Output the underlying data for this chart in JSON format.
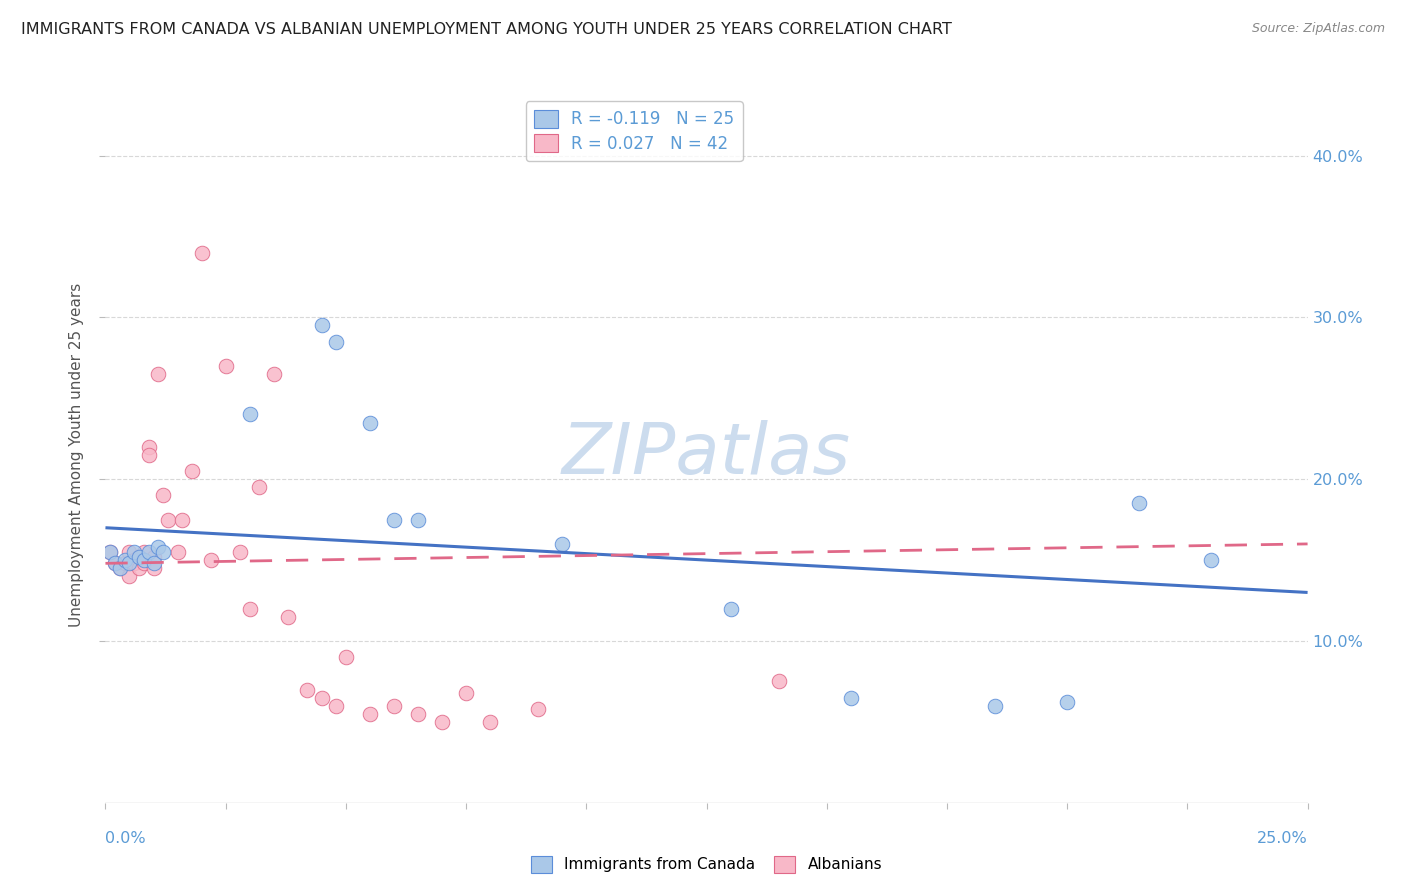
{
  "title": "IMMIGRANTS FROM CANADA VS ALBANIAN UNEMPLOYMENT AMONG YOUTH UNDER 25 YEARS CORRELATION CHART",
  "source": "Source: ZipAtlas.com",
  "ylabel": "Unemployment Among Youth under 25 years",
  "xlim": [
    0.0,
    0.25
  ],
  "ylim": [
    0.0,
    0.43
  ],
  "blue_scatter_x": [
    0.001,
    0.002,
    0.003,
    0.004,
    0.005,
    0.006,
    0.007,
    0.008,
    0.009,
    0.01,
    0.011,
    0.012,
    0.03,
    0.045,
    0.048,
    0.055,
    0.06,
    0.065,
    0.095,
    0.13,
    0.155,
    0.185,
    0.2,
    0.215,
    0.23
  ],
  "blue_scatter_y": [
    0.155,
    0.148,
    0.145,
    0.15,
    0.148,
    0.155,
    0.152,
    0.15,
    0.155,
    0.148,
    0.158,
    0.155,
    0.24,
    0.295,
    0.285,
    0.235,
    0.175,
    0.175,
    0.16,
    0.12,
    0.065,
    0.06,
    0.062,
    0.185,
    0.15
  ],
  "pink_scatter_x": [
    0.001,
    0.002,
    0.003,
    0.004,
    0.005,
    0.005,
    0.006,
    0.006,
    0.007,
    0.007,
    0.008,
    0.008,
    0.009,
    0.009,
    0.01,
    0.01,
    0.011,
    0.012,
    0.013,
    0.015,
    0.016,
    0.018,
    0.02,
    0.022,
    0.025,
    0.028,
    0.03,
    0.032,
    0.035,
    0.038,
    0.042,
    0.045,
    0.048,
    0.05,
    0.055,
    0.06,
    0.065,
    0.07,
    0.075,
    0.08,
    0.09,
    0.14
  ],
  "pink_scatter_y": [
    0.155,
    0.148,
    0.145,
    0.148,
    0.155,
    0.14,
    0.15,
    0.148,
    0.152,
    0.145,
    0.155,
    0.148,
    0.22,
    0.215,
    0.152,
    0.145,
    0.265,
    0.19,
    0.175,
    0.155,
    0.175,
    0.205,
    0.34,
    0.15,
    0.27,
    0.155,
    0.12,
    0.195,
    0.265,
    0.115,
    0.07,
    0.065,
    0.06,
    0.09,
    0.055,
    0.06,
    0.055,
    0.05,
    0.068,
    0.05,
    0.058,
    0.075
  ],
  "blue_color": "#aac8e8",
  "blue_edge_color": "#5b8dd9",
  "pink_color": "#f8b8c8",
  "pink_edge_color": "#e06888",
  "blue_line_color": "#4472c4",
  "pink_line_color": "#e06888",
  "grid_color": "#d8d8d8",
  "right_axis_color": "#5b9bd5",
  "background_color": "#ffffff",
  "watermark_color": "#ccdcee",
  "title_color": "#222222",
  "source_color": "#888888",
  "ylabel_color": "#555555",
  "blue_line_x0": 0.0,
  "blue_line_y0": 0.17,
  "blue_line_x1": 0.25,
  "blue_line_y1": 0.13,
  "pink_line_x0": 0.0,
  "pink_line_y0": 0.148,
  "pink_line_x1": 0.25,
  "pink_line_y1": 0.16
}
